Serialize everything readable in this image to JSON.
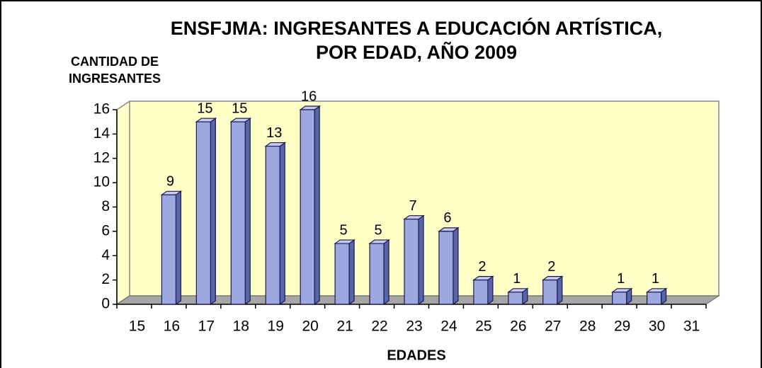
{
  "chart_data": {
    "type": "bar3d",
    "title": [
      "ENSFJMA: INGRESANTES A EDUCACIÓN ARTÍSTICA,",
      "POR EDAD, AÑO 2009"
    ],
    "y_label": [
      "CANTIDAD DE",
      "INGRESANTES"
    ],
    "x_label": "EDADES",
    "categories": [
      "15",
      "16",
      "17",
      "18",
      "19",
      "20",
      "21",
      "22",
      "23",
      "24",
      "25",
      "26",
      "27",
      "28",
      "29",
      "30",
      "31"
    ],
    "values": [
      null,
      9,
      15,
      15,
      13,
      16,
      5,
      5,
      7,
      6,
      2,
      1,
      2,
      null,
      1,
      1,
      null
    ],
    "color": "#9ea8e0",
    "wall_color": "#ffffc8",
    "floor_color": "#a6a6a6",
    "ylim": [
      0,
      16
    ],
    "yticks": [
      0,
      2,
      4,
      6,
      8,
      10,
      12,
      14,
      16
    ],
    "grid": false
  }
}
